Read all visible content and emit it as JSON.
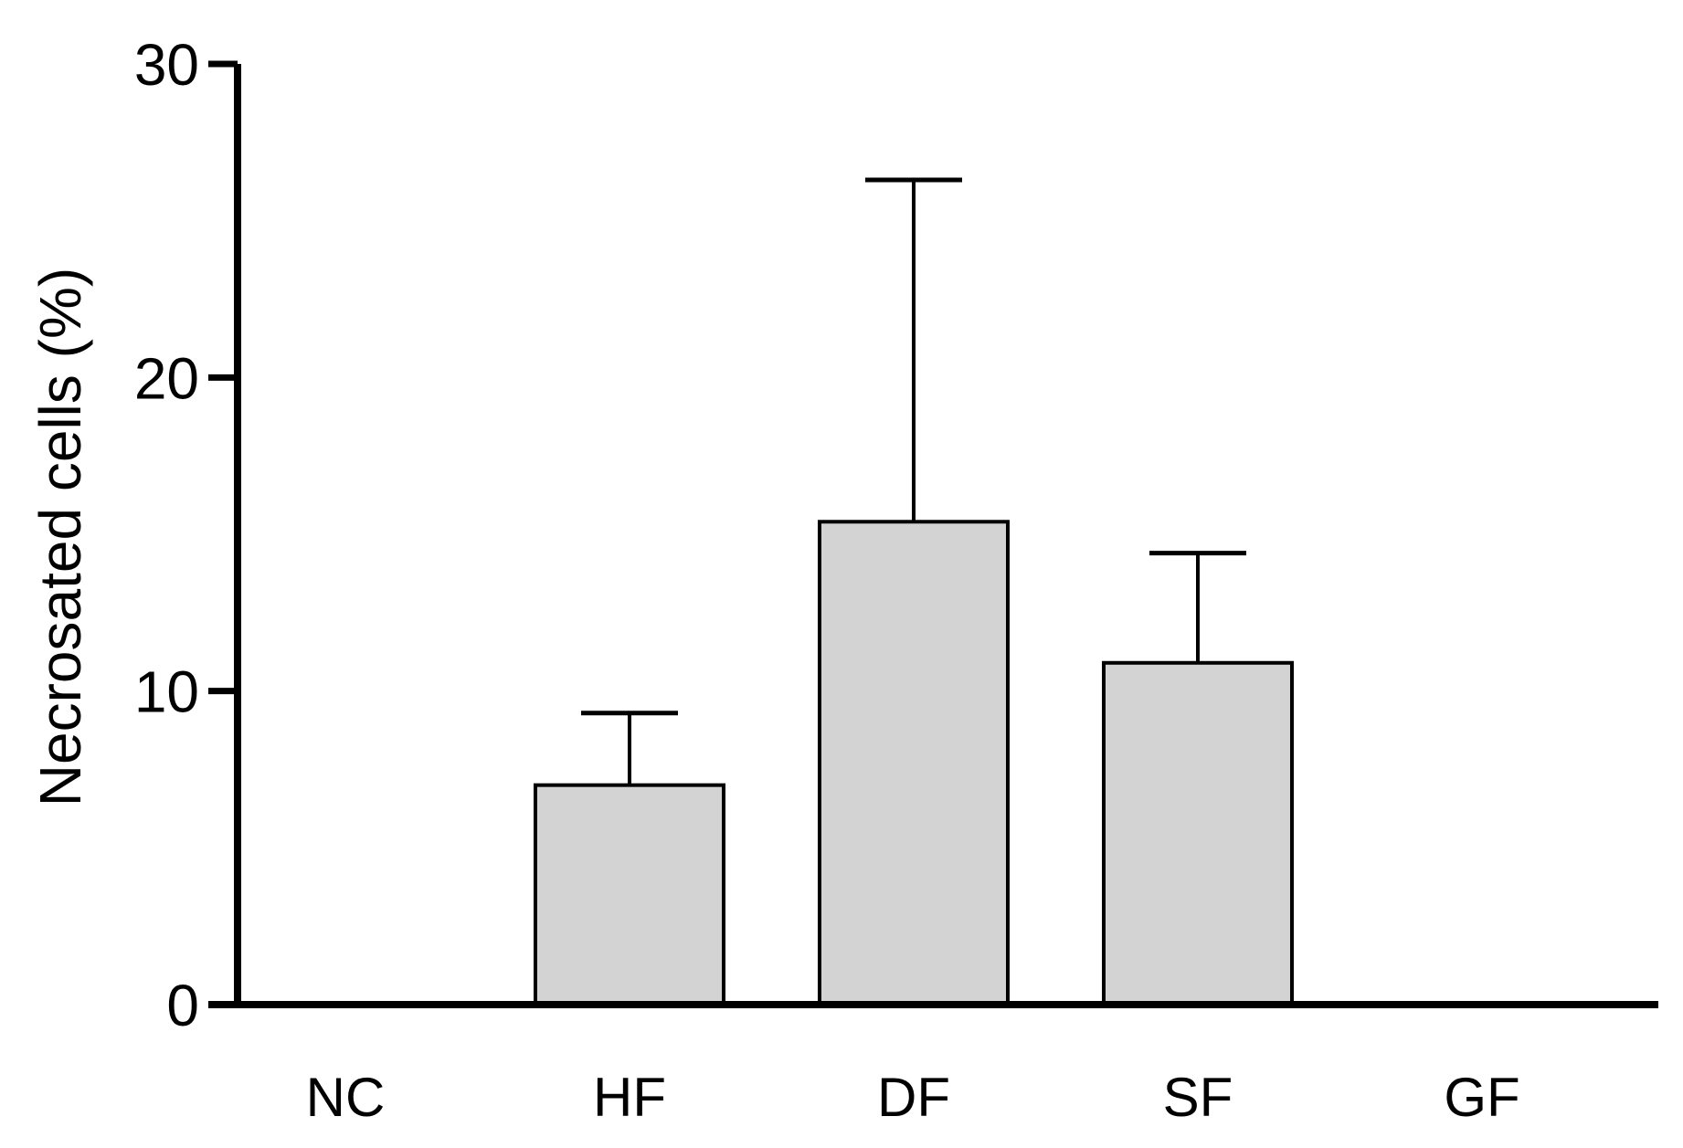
{
  "colors": {
    "bar_fill": "#d3d3d3",
    "bar_stroke": "#000000",
    "axis": "#000000"
  },
  "chart_data": {
    "type": "bar",
    "title": "",
    "xlabel": "",
    "ylabel": "Necrosated cells (%)",
    "ylim": [
      0,
      30
    ],
    "yticks": [
      0,
      10,
      20,
      30
    ],
    "grid": false,
    "legend": "none",
    "categories": [
      "NC",
      "HF",
      "DF",
      "SF",
      "GF"
    ],
    "values": [
      0,
      7,
      15.4,
      10.9,
      0
    ],
    "error_upper": [
      0,
      2.3,
      10.9,
      3.5,
      0
    ]
  }
}
